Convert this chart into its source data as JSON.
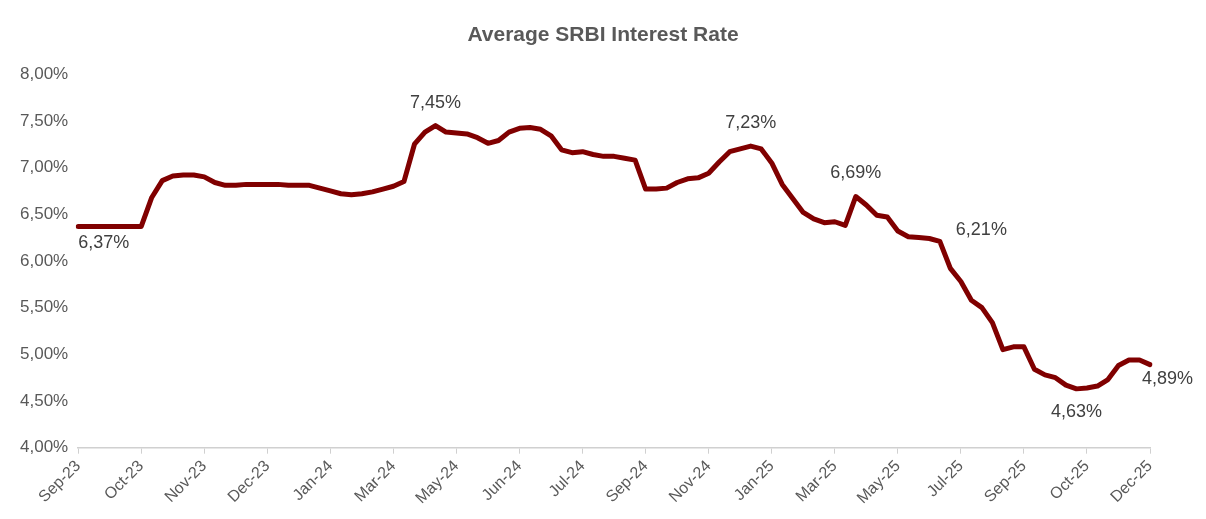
{
  "chart_data": {
    "type": "line",
    "title": "Average SRBI Interest Rate",
    "categories": [
      "Sep-23",
      null,
      null,
      null,
      null,
      null,
      "Oct-23",
      null,
      null,
      null,
      null,
      null,
      "Nov-23",
      null,
      null,
      null,
      null,
      null,
      "Dec-23",
      null,
      null,
      null,
      null,
      null,
      "Jan-24",
      null,
      null,
      null,
      null,
      null,
      "Mar-24",
      null,
      null,
      null,
      null,
      null,
      "May-24",
      null,
      null,
      null,
      null,
      null,
      "Jun-24",
      null,
      null,
      null,
      null,
      null,
      "Jul-24",
      null,
      null,
      null,
      null,
      null,
      "Sep-24",
      null,
      null,
      null,
      null,
      null,
      "Nov-24",
      null,
      null,
      null,
      null,
      null,
      "Jan-25",
      null,
      null,
      null,
      null,
      null,
      "Mar-25",
      null,
      null,
      null,
      null,
      null,
      "May-25",
      null,
      null,
      null,
      null,
      null,
      "Jul-25",
      null,
      null,
      null,
      null,
      null,
      "Sep-25",
      null,
      null,
      null,
      null,
      null,
      "Oct-25",
      null,
      null,
      null,
      null,
      null,
      "Dec-25"
    ],
    "series": [
      {
        "color": "#800000",
        "values": [
          6.37,
          6.37,
          6.37,
          6.37,
          6.37,
          6.37,
          6.37,
          6.68,
          6.86,
          6.91,
          6.92,
          6.92,
          6.9,
          6.84,
          6.81,
          6.81,
          6.82,
          6.82,
          6.82,
          6.82,
          6.81,
          6.81,
          6.81,
          6.78,
          6.75,
          6.72,
          6.71,
          6.72,
          6.74,
          6.77,
          6.8,
          6.85,
          7.25,
          7.38,
          7.45,
          7.38,
          7.37,
          7.36,
          7.32,
          7.26,
          7.29,
          7.38,
          7.42,
          7.43,
          7.41,
          7.34,
          7.19,
          7.16,
          7.17,
          7.14,
          7.12,
          7.12,
          7.1,
          7.08,
          6.77,
          6.77,
          6.78,
          6.84,
          6.88,
          6.89,
          6.94,
          7.06,
          7.17,
          7.2,
          7.23,
          7.2,
          7.05,
          6.82,
          6.67,
          6.52,
          6.45,
          6.41,
          6.42,
          6.38,
          6.69,
          6.6,
          6.49,
          6.47,
          6.32,
          6.26,
          6.25,
          6.24,
          6.21,
          5.92,
          5.78,
          5.58,
          5.5,
          5.34,
          5.05,
          5.08,
          5.08,
          4.84,
          4.78,
          4.75,
          4.67,
          4.63,
          4.64,
          4.66,
          4.73,
          4.88,
          4.94,
          4.94,
          4.89
        ],
        "value_labels": [
          "6,37%",
          null,
          null,
          null,
          null,
          null,
          null,
          null,
          null,
          null,
          null,
          null,
          null,
          null,
          null,
          null,
          null,
          null,
          null,
          null,
          null,
          null,
          null,
          null,
          null,
          null,
          null,
          null,
          null,
          null,
          null,
          null,
          null,
          null,
          "7,45%",
          null,
          null,
          null,
          null,
          null,
          null,
          null,
          null,
          null,
          null,
          null,
          null,
          null,
          null,
          null,
          null,
          null,
          null,
          null,
          null,
          null,
          null,
          null,
          null,
          null,
          null,
          null,
          null,
          null,
          "7,23%",
          null,
          null,
          null,
          null,
          null,
          null,
          null,
          null,
          null,
          "6,69%",
          null,
          null,
          null,
          null,
          null,
          null,
          null,
          "6,21%",
          null,
          null,
          null,
          null,
          null,
          null,
          null,
          null,
          null,
          null,
          null,
          null,
          "4,63%",
          null,
          null,
          null,
          null,
          null,
          null,
          "4,89%"
        ]
      }
    ],
    "ylim": [
      4,
      8
    ],
    "yticks": [
      {
        "value": 4,
        "label": "4,00%"
      },
      {
        "value": 4.5,
        "label": "4,50%"
      },
      {
        "value": 5,
        "label": "5,00%"
      },
      {
        "value": 5.5,
        "label": "5,50%"
      },
      {
        "value": 6,
        "label": "6,00%"
      },
      {
        "value": 6.5,
        "label": "6,50%"
      },
      {
        "value": 7,
        "label": "7,00%"
      },
      {
        "value": 7.5,
        "label": "7,50%"
      },
      {
        "value": 8,
        "label": "8,00%"
      }
    ],
    "grid": false,
    "legend": false,
    "marker": "none",
    "line_style": "solid"
  }
}
